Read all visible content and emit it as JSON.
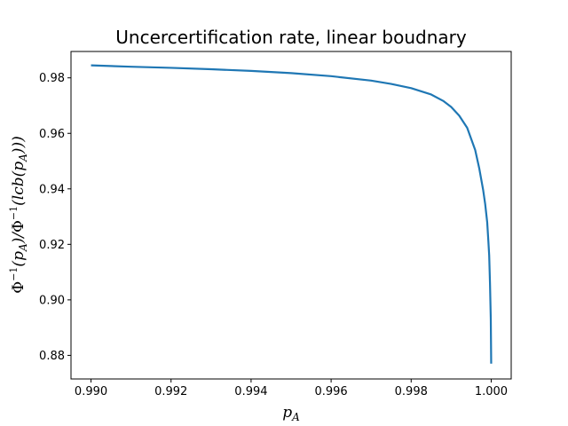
{
  "chart_data": {
    "type": "line",
    "title": "Uncercertification rate, linear boudnary",
    "xlabel": "p_A",
    "ylabel": "Φ^{-1}(p_A)/Φ^{-1}(lcb(p_A)))",
    "xlim": [
      0.9895,
      1.0005
    ],
    "ylim": [
      0.8715,
      0.9895
    ],
    "grid": false,
    "legend": "none",
    "xticks": [
      0.99,
      0.992,
      0.994,
      0.996,
      0.998,
      1.0
    ],
    "xtick_labels": [
      "0.990",
      "0.992",
      "0.994",
      "0.996",
      "0.998",
      "1.000"
    ],
    "yticks": [
      0.88,
      0.9,
      0.92,
      0.94,
      0.96,
      0.98
    ],
    "ytick_labels": [
      "0.88",
      "0.90",
      "0.92",
      "0.94",
      "0.96",
      "0.98"
    ],
    "series": [
      {
        "color": "#1f77b4",
        "x": [
          0.99,
          0.991,
          0.992,
          0.993,
          0.994,
          0.995,
          0.996,
          0.997,
          0.9975,
          0.998,
          0.9985,
          0.9988,
          0.999,
          0.9992,
          0.9994,
          0.9995,
          0.9996,
          0.9997,
          0.9998,
          0.99985,
          0.9999,
          0.99993,
          0.99995,
          0.99997,
          0.99999,
          1.0
        ],
        "y": [
          0.9845,
          0.984,
          0.9836,
          0.9831,
          0.9825,
          0.9817,
          0.9806,
          0.979,
          0.9778,
          0.9763,
          0.974,
          0.9717,
          0.9695,
          0.9664,
          0.962,
          0.958,
          0.954,
          0.9475,
          0.9395,
          0.9345,
          0.928,
          0.921,
          0.916,
          0.906,
          0.893,
          0.877
        ]
      }
    ]
  }
}
